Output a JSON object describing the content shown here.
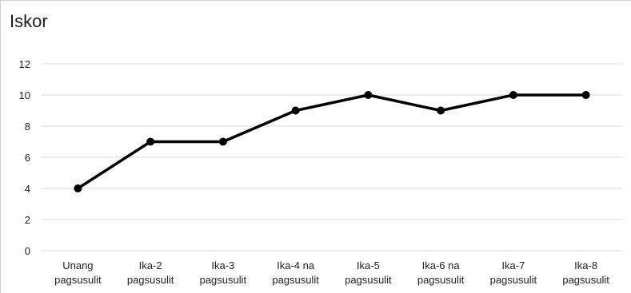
{
  "chart_data": {
    "type": "line",
    "title": "Iskor",
    "xlabel": "",
    "ylabel": "",
    "ylim": [
      0,
      12
    ],
    "yticks": [
      0,
      2,
      4,
      6,
      8,
      10,
      12
    ],
    "grid": true,
    "categories": [
      [
        "Unang",
        "pagsusulit"
      ],
      [
        "Ika-2",
        "pagsusulit"
      ],
      [
        "Ika-3",
        "pagsusulit"
      ],
      [
        "Ika-4 na",
        "pagsusulit"
      ],
      [
        "Ika-5",
        "pagsusulit"
      ],
      [
        "Ika-6 na",
        "pagsusulit"
      ],
      [
        "Ika-7",
        "pagsusulit"
      ],
      [
        "Ika-8",
        "pagsusulit"
      ]
    ],
    "series": [
      {
        "values": [
          4,
          7,
          7,
          9,
          10,
          9,
          10,
          10
        ]
      }
    ],
    "colors": {
      "line": "#000000",
      "grid": "#d9d9d9",
      "text": "#222222"
    }
  }
}
